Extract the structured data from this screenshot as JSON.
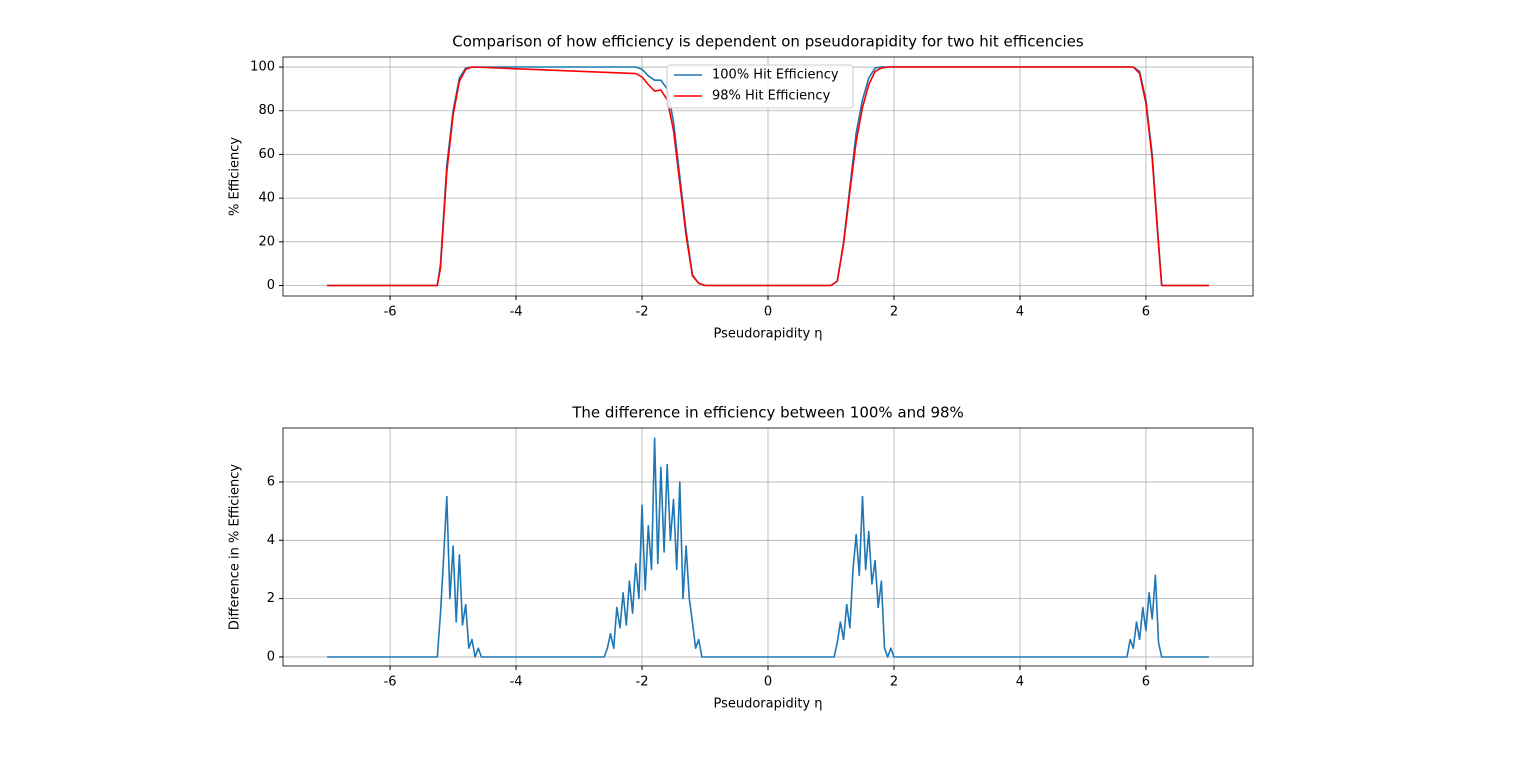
{
  "chart_data": [
    {
      "type": "line",
      "title": "Comparison of how efficiency is dependent on pseudorapidity for two hit efficencies",
      "x_label": "Pseudorapidity η",
      "y_label": "% Efficiency",
      "x": [
        -7,
        -5.25,
        -5.2,
        -5.1,
        -5.0,
        -4.9,
        -4.8,
        -4.7,
        -2.1,
        -2.0,
        -1.9,
        -1.8,
        -1.7,
        -1.6,
        -1.5,
        -1.4,
        -1.3,
        -1.2,
        -1.1,
        -1.0,
        1.0,
        1.1,
        1.2,
        1.3,
        1.4,
        1.5,
        1.6,
        1.7,
        1.8,
        1.9,
        5.8,
        5.9,
        6.0,
        6.1,
        6.2,
        6.25,
        7
      ],
      "series": [
        {
          "name": "100% Hit Efficiency",
          "color": "#1f77b4",
          "values": [
            0,
            0,
            10,
            55,
            80,
            95,
            99.5,
            100,
            100,
            99,
            96,
            94,
            94,
            90,
            75,
            50,
            25,
            5,
            1,
            0,
            0,
            2,
            20,
            45,
            70,
            85,
            95,
            99.5,
            100,
            100,
            100,
            98,
            85,
            60,
            20,
            0,
            0
          ]
        },
        {
          "name": "98% Hit Efficiency",
          "color": "#ff0000",
          "values": [
            0,
            0,
            8,
            52,
            78,
            93.5,
            99,
            100,
            97,
            95.5,
            92,
            89,
            89.5,
            85,
            71,
            47,
            23,
            4.5,
            1,
            0,
            0,
            2,
            19,
            43,
            66,
            81.5,
            92,
            98,
            99.5,
            100,
            100,
            97,
            83.5,
            58,
            18.5,
            0,
            0
          ]
        }
      ],
      "xlim": [
        -7.7,
        7.7
      ],
      "ylim": [
        -4.8,
        104.6
      ],
      "xticks": [
        -6,
        -4,
        -2,
        0,
        2,
        4,
        6
      ],
      "yticks": [
        0,
        20,
        40,
        60,
        80,
        100
      ],
      "grid": true,
      "legend": "upper center"
    },
    {
      "type": "line",
      "title": "The difference in efficiency between 100% and 98%",
      "x_label": "Pseudorapidity η",
      "y_label": "Difference in % Efficiency",
      "x": [
        -7,
        -5.25,
        -5.2,
        -5.15,
        -5.1,
        -5.05,
        -5.0,
        -4.95,
        -4.9,
        -4.85,
        -4.8,
        -4.75,
        -4.7,
        -4.65,
        -4.6,
        -4.55,
        -4.5,
        -2.6,
        -2.55,
        -2.5,
        -2.45,
        -2.4,
        -2.35,
        -2.3,
        -2.25,
        -2.2,
        -2.15,
        -2.1,
        -2.05,
        -2.0,
        -1.95,
        -1.9,
        -1.85,
        -1.8,
        -1.75,
        -1.7,
        -1.65,
        -1.6,
        -1.55,
        -1.5,
        -1.45,
        -1.4,
        -1.35,
        -1.3,
        -1.25,
        -1.2,
        -1.15,
        -1.1,
        -1.05,
        1.05,
        1.1,
        1.15,
        1.2,
        1.25,
        1.3,
        1.35,
        1.4,
        1.45,
        1.5,
        1.55,
        1.6,
        1.65,
        1.7,
        1.75,
        1.8,
        1.85,
        1.9,
        1.95,
        2.0,
        5.7,
        5.75,
        5.8,
        5.85,
        5.9,
        5.95,
        6.0,
        6.05,
        6.1,
        6.15,
        6.2,
        6.25,
        7
      ],
      "series": [
        {
          "color": "#1f77b4",
          "values": [
            0,
            0,
            1.5,
            3.4,
            5.5,
            2,
            3.8,
            1.2,
            3.5,
            1.1,
            1.8,
            0.3,
            0.6,
            0,
            0.3,
            0,
            0,
            0,
            0.3,
            0.8,
            0.3,
            1.7,
            1.0,
            2.2,
            1.1,
            2.6,
            1.5,
            3.2,
            2.0,
            5.2,
            2.3,
            4.5,
            3.0,
            7.5,
            3.2,
            6.5,
            3.6,
            6.6,
            4.0,
            5.4,
            3.0,
            6.0,
            2.0,
            3.8,
            2.0,
            1.2,
            0.3,
            0.6,
            0,
            0,
            0.5,
            1.2,
            0.6,
            1.8,
            1.0,
            3.0,
            4.2,
            2.8,
            5.5,
            3.0,
            4.3,
            2.5,
            3.3,
            1.7,
            2.6,
            0.3,
            0,
            0.3,
            0,
            0,
            0.6,
            0.3,
            1.2,
            0.6,
            1.7,
            0.9,
            2.2,
            1.3,
            2.8,
            0.5,
            0,
            0
          ]
        }
      ],
      "xlim": [
        -7.7,
        7.7
      ],
      "ylim": [
        -0.31,
        7.85
      ],
      "xticks": [
        -6,
        -4,
        -2,
        0,
        2,
        4,
        6
      ],
      "yticks": [
        0,
        2,
        4,
        6
      ],
      "grid": true
    }
  ]
}
